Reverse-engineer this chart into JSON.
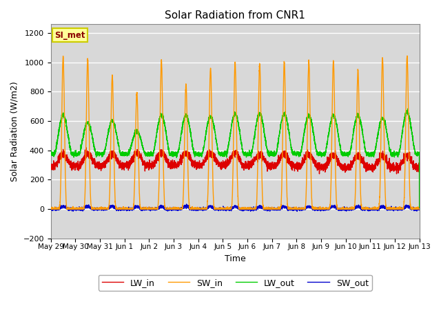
{
  "title": "Solar Radiation from CNR1",
  "xlabel": "Time",
  "ylabel": "Solar Radiation (W/m2)",
  "ylim": [
    -200,
    1260
  ],
  "yticks": [
    -200,
    0,
    200,
    400,
    600,
    800,
    1000,
    1200
  ],
  "xlim_days": [
    0,
    15.0
  ],
  "background_color": "#d8d8d8",
  "figure_color": "#ffffff",
  "label_box": "SI_met",
  "lines": {
    "LW_in": {
      "color": "#dd0000",
      "lw": 1.0
    },
    "SW_in": {
      "color": "#ff9900",
      "lw": 1.0
    },
    "LW_out": {
      "color": "#00cc00",
      "lw": 1.0
    },
    "SW_out": {
      "color": "#0000cc",
      "lw": 1.0
    }
  },
  "xtick_labels": [
    "May 29",
    "May 30",
    "May 31",
    "Jun 1",
    "Jun 2",
    "Jun 3",
    "Jun 4",
    "Jun 5",
    "Jun 6",
    "Jun 7",
    "Jun 8",
    "Jun 9",
    "Jun 10",
    "Jun 11",
    "Jun 12",
    "Jun 13"
  ],
  "xtick_positions": [
    0,
    1,
    2,
    3,
    4,
    5,
    6,
    7,
    8,
    9,
    10,
    11,
    12,
    13,
    14,
    15
  ],
  "n_days": 15,
  "pts_per_day": 288
}
